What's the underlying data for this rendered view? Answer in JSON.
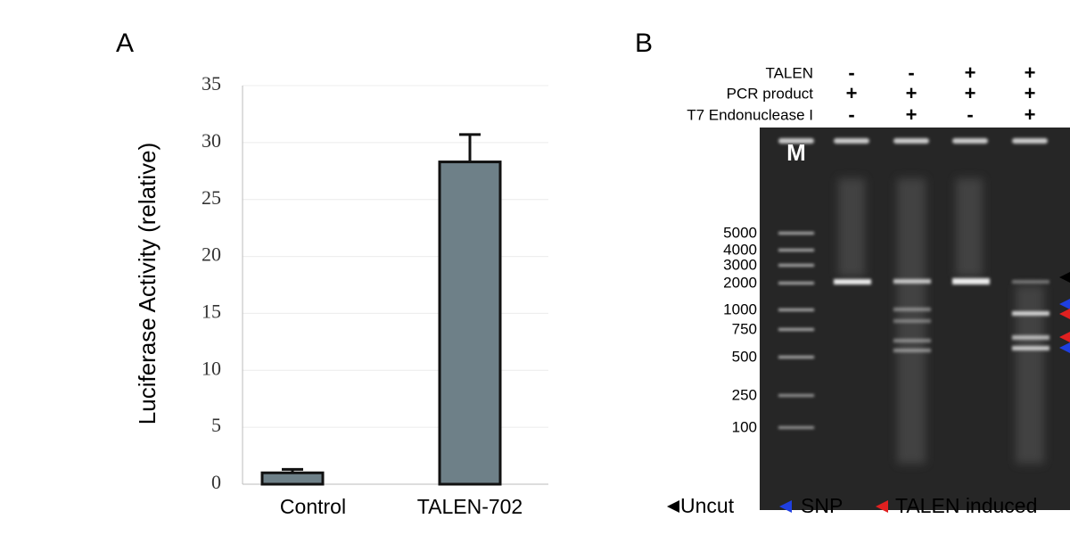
{
  "chart_data": {
    "type": "bar",
    "panel_label": "A",
    "y_label": "Luciferase Activity (relative)",
    "categories": [
      "Control",
      "TALEN-702"
    ],
    "values": [
      1,
      28.3
    ],
    "errors": [
      0.3,
      2.4
    ],
    "color": "#6e8088",
    "ylim": [
      0,
      35
    ],
    "yticks": [
      0,
      5,
      10,
      15,
      20,
      25,
      30,
      35
    ],
    "grid": true
  },
  "gel": {
    "panel_label": "B",
    "conditions": [
      {
        "name": "TALEN",
        "lanes": [
          "-",
          "-",
          "+",
          "+"
        ]
      },
      {
        "name": "PCR product",
        "lanes": [
          "+",
          "+",
          "+",
          "+"
        ]
      },
      {
        "name": "T7 Endonuclease I",
        "lanes": [
          "-",
          "+",
          "-",
          "+"
        ]
      }
    ],
    "marker_label": "M",
    "marker_sizes": [
      5000,
      4000,
      3000,
      2000,
      1000,
      750,
      500,
      250,
      100
    ],
    "legend": [
      {
        "label": "Uncut",
        "color": "#000000"
      },
      {
        "label": "SNP",
        "color": "#1f3fe0"
      },
      {
        "label": "TALEN induced",
        "color": "#e02020"
      }
    ]
  }
}
